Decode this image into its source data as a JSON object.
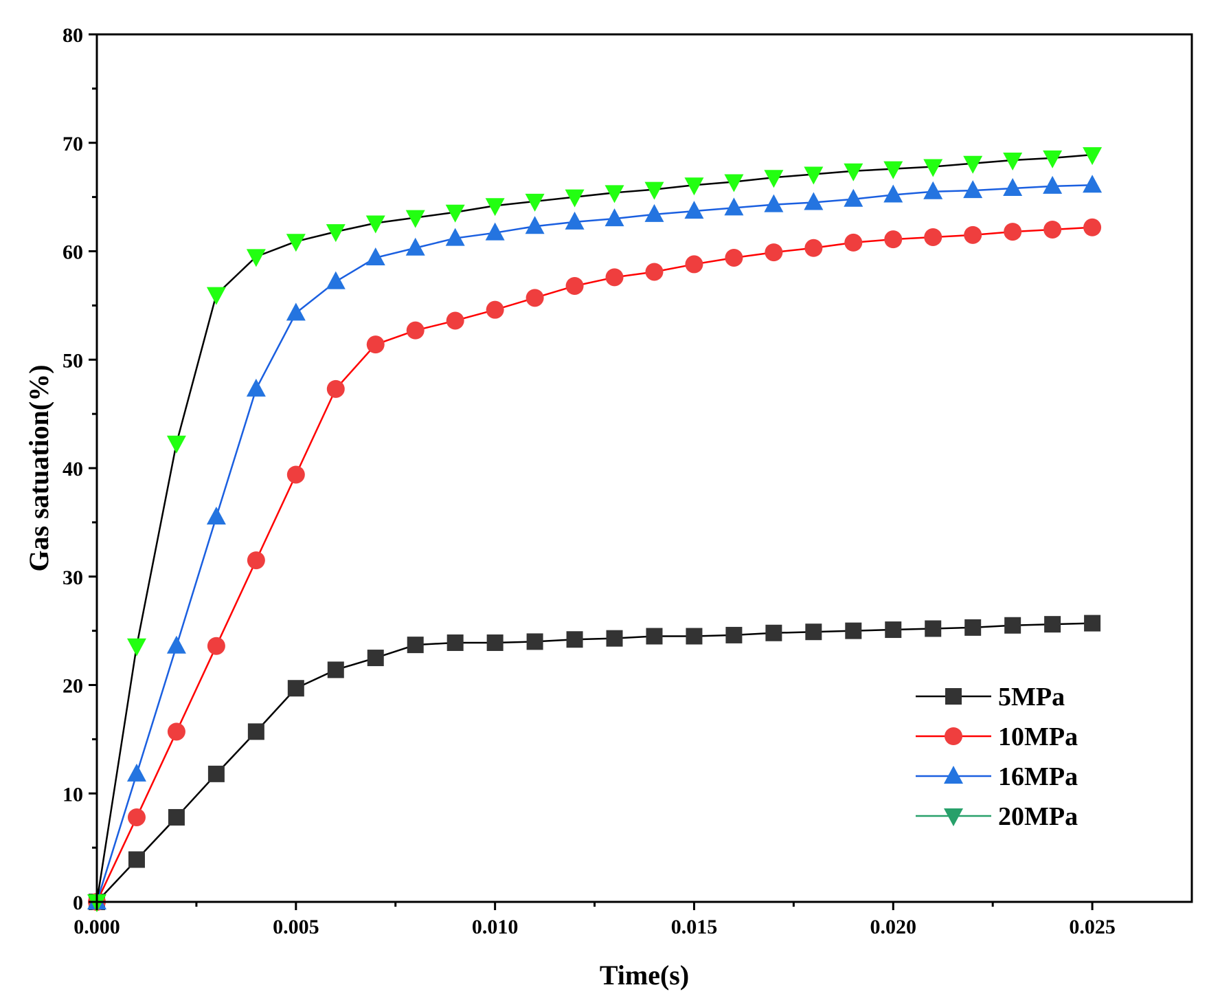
{
  "chart_data": {
    "type": "line",
    "title": "",
    "xlabel": "Time(s)",
    "ylabel": "Gas satuation(%)",
    "xlim": [
      0,
      0.0275
    ],
    "ylim": [
      0,
      80
    ],
    "xticks": [
      0.0,
      0.005,
      0.01,
      0.015,
      0.02,
      0.025
    ],
    "xtick_labels": [
      "0.000",
      "0.005",
      "0.010",
      "0.015",
      "0.020",
      "0.025"
    ],
    "yticks": [
      0,
      10,
      20,
      30,
      40,
      50,
      60,
      70,
      80
    ],
    "ytick_labels": [
      "0",
      "10",
      "20",
      "30",
      "40",
      "50",
      "60",
      "70",
      "80"
    ],
    "grid": false,
    "legend_position": "bottom-right",
    "x": [
      0.0,
      0.001,
      0.002,
      0.003,
      0.004,
      0.005,
      0.006,
      0.007,
      0.008,
      0.009,
      0.01,
      0.011,
      0.012,
      0.013,
      0.014,
      0.015,
      0.016,
      0.017,
      0.018,
      0.019,
      0.02,
      0.021,
      0.022,
      0.023,
      0.024,
      0.025
    ],
    "series": [
      {
        "name": "5MPa",
        "marker": "square",
        "line_color": "#000000",
        "marker_color": "#333333",
        "values": [
          0,
          3.9,
          7.8,
          11.8,
          15.7,
          19.7,
          21.4,
          22.5,
          23.7,
          23.9,
          23.9,
          24.0,
          24.2,
          24.3,
          24.5,
          24.5,
          24.6,
          24.8,
          24.9,
          25.0,
          25.1,
          25.2,
          25.3,
          25.5,
          25.6,
          25.7
        ]
      },
      {
        "name": "10MPa",
        "marker": "circle",
        "line_color": "#ff0000",
        "marker_color": "#ef3e3e",
        "values": [
          0,
          7.8,
          15.7,
          23.6,
          31.5,
          39.4,
          47.3,
          51.4,
          52.7,
          53.6,
          54.6,
          55.7,
          56.8,
          57.6,
          58.1,
          58.8,
          59.4,
          59.9,
          60.3,
          60.8,
          61.1,
          61.3,
          61.5,
          61.8,
          62.0,
          62.2
        ]
      },
      {
        "name": "16MPa",
        "marker": "triangle-up",
        "line_color": "#1a5fe0",
        "marker_color": "#2474e0",
        "values": [
          0,
          11.8,
          23.6,
          35.5,
          47.3,
          54.3,
          57.2,
          59.4,
          60.3,
          61.2,
          61.7,
          62.3,
          62.7,
          63.0,
          63.4,
          63.7,
          64.0,
          64.3,
          64.5,
          64.8,
          65.2,
          65.5,
          65.6,
          65.8,
          66.0,
          66.1
        ]
      },
      {
        "name": "20MPa",
        "marker": "triangle-down",
        "line_color": "#000000",
        "legend_line_color": "#27a06a",
        "marker_color": "#22ff11",
        "legend_marker_color": "#27a06a",
        "values": [
          0,
          23.6,
          42.3,
          56.0,
          59.5,
          60.9,
          61.8,
          62.6,
          63.1,
          63.6,
          64.2,
          64.6,
          65.0,
          65.4,
          65.7,
          66.1,
          66.4,
          66.8,
          67.1,
          67.4,
          67.6,
          67.8,
          68.1,
          68.4,
          68.6,
          68.9
        ]
      }
    ]
  }
}
